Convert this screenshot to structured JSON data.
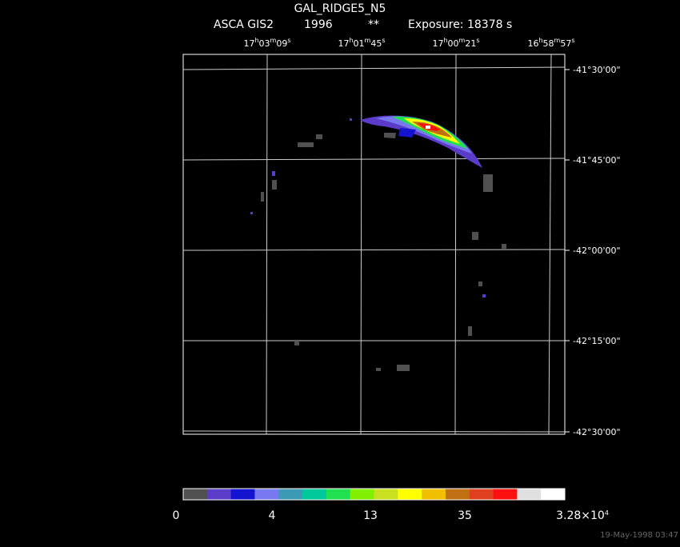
{
  "header": {
    "title": "GAL_RIDGE5_N5",
    "instrument": "ASCA GIS2",
    "year": "1996",
    "marker": "**",
    "exposure": "Exposure: 18378 s"
  },
  "ra_labels": [
    {
      "parts": [
        "17",
        "h",
        "03",
        "m",
        "09",
        "s"
      ]
    },
    {
      "parts": [
        "17",
        "h",
        "01",
        "m",
        "45",
        "s"
      ]
    },
    {
      "parts": [
        "17",
        "h",
        "00",
        "m",
        "21",
        "s"
      ]
    },
    {
      "parts": [
        "16",
        "h",
        "58",
        "m",
        "57",
        "s"
      ]
    }
  ],
  "dec_labels": [
    "-41°30'00\"",
    "-41°45'00\"",
    "-42°00'00\"",
    "-42°15'00\"",
    "-42°30'00\""
  ],
  "colorbar": {
    "colors": [
      "#505050",
      "#5a3cc8",
      "#1414d0",
      "#7878f0",
      "#3c9ab4",
      "#00c89a",
      "#20e050",
      "#80f000",
      "#c8e020",
      "#ffff00",
      "#f0c000",
      "#c07010",
      "#e04020",
      "#ff1010",
      "#e0e0e0",
      "#ffffff"
    ],
    "labels": [
      {
        "parts": [
          "0"
        ]
      },
      {
        "parts": [
          "4"
        ]
      },
      {
        "parts": [
          "13"
        ]
      },
      {
        "parts": [
          "35"
        ]
      },
      {
        "parts": [
          "3.28×10",
          "4"
        ]
      }
    ]
  },
  "timestamp": "19-May-1998 03:47"
}
